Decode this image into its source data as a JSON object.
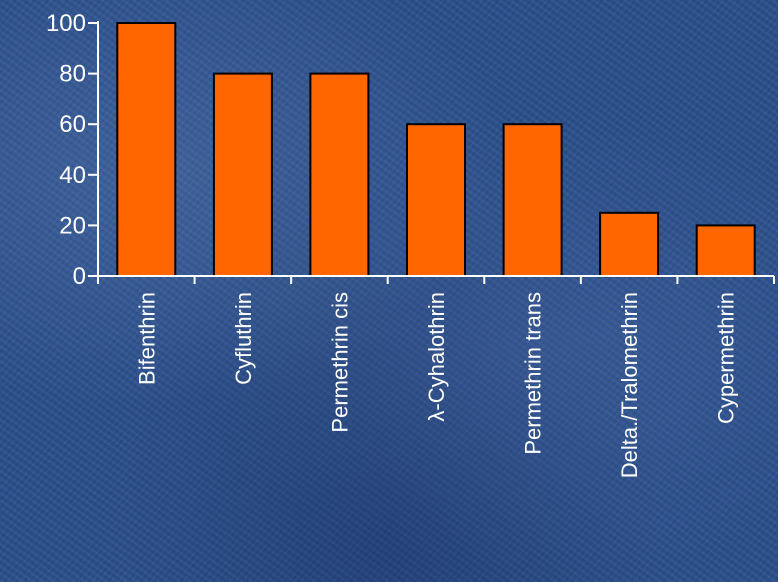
{
  "chart_data": {
    "type": "bar",
    "categories": [
      "Bifenthrin",
      "Cyfluthrin",
      "Permethrin cis",
      "λ-Cyhalothrin",
      "Permethrin trans",
      "Delta./Tralomethrin",
      "Cypermethrin"
    ],
    "values": [
      100,
      80,
      80,
      60,
      60,
      25,
      20
    ],
    "y_ticks": [
      0,
      20,
      40,
      60,
      80,
      100
    ],
    "title": "",
    "xlabel": "",
    "ylabel": "",
    "ylim": [
      0,
      100
    ],
    "grid": false,
    "legend": "none",
    "bar_color": "#ff6600",
    "bar_edge_color": "#000000",
    "axis_color": "#ffffff",
    "text_color": "#ffffff",
    "background_color": "#2b4f8c"
  }
}
